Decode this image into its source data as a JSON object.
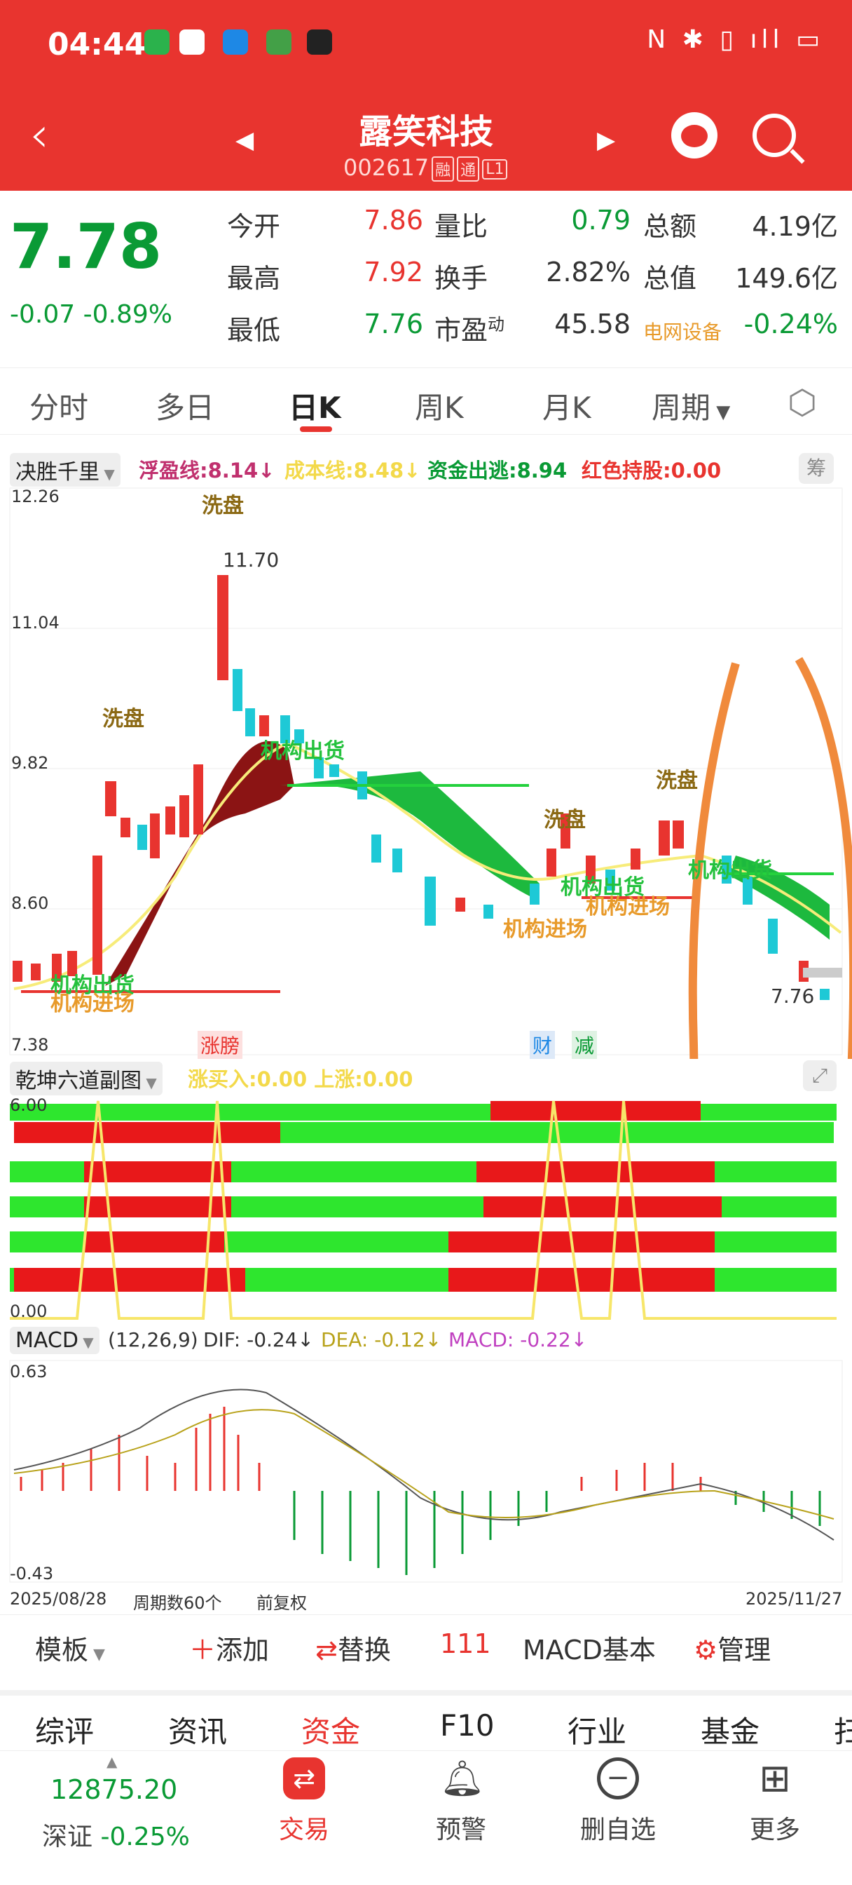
{
  "status": {
    "time": "04:44",
    "right_icons": "N ✱ ▯ ıll ▭"
  },
  "header": {
    "stock_name": "露笑科技",
    "stock_code": "002617",
    "tags": [
      "融",
      "通",
      "L1"
    ]
  },
  "quote": {
    "price": "7.78",
    "change": "-0.07",
    "change_pct": "-0.89%",
    "rows": [
      {
        "l1": "今开",
        "v1": "7.86",
        "l2": "量比",
        "v2": "0.79",
        "l3": "总额",
        "v3": "4.19亿"
      },
      {
        "l1": "最高",
        "v1": "7.92",
        "l2": "换手",
        "v2": "2.82%",
        "l3": "总值",
        "v3": "149.6亿"
      },
      {
        "l1": "最低",
        "v1": "7.76",
        "l2": "市盈",
        "l2sup": "动",
        "v2": "45.58",
        "l3": "电网设备",
        "v3": "-0.24%"
      }
    ]
  },
  "tabs": [
    "分时",
    "多日",
    "日K",
    "周K",
    "月K",
    "周期"
  ],
  "kline": {
    "indicator": "决胜千里",
    "legend": [
      {
        "t": "浮盈线:8.14↓",
        "c": "#c0306e"
      },
      {
        "t": "成本线:8.48↓",
        "c": "#f3d94a"
      },
      {
        "t": "资金出逃:8.94",
        "c": "#0a9a35"
      },
      {
        "t": "红色持股:0.00",
        "c": "#e8342f"
      }
    ],
    "chip": "筹",
    "y_labels": [
      "12.26",
      "11.04",
      "9.82",
      "8.60",
      "7.38"
    ],
    "high_label": "11.70",
    "low_label": "7.76",
    "wash_labels": [
      "洗盘",
      "洗盘",
      "洗盘",
      "洗盘"
    ],
    "inst_out": "机构出货",
    "inst_in": "机构进场",
    "events": {
      "limit": "涨膀",
      "fin": "财",
      "reduce": "减"
    }
  },
  "sub1": {
    "indicator": "乾坤六道副图",
    "legend": "涨买入:0.00 上涨:0.00",
    "y_top": "6.00",
    "y_bottom": "0.00"
  },
  "macd": {
    "indicator": "MACD",
    "params": "(12,26,9)",
    "dif": "DIF: -0.24↓",
    "dea": "DEA: -0.12↓",
    "macd": "MACD: -0.22↓",
    "y_top": "0.63",
    "y_bottom": "-0.43",
    "date_start": "2025/08/28",
    "period_count": "周期数60个",
    "adjust": "前复权",
    "date_end": "2025/11/27"
  },
  "toolbar": {
    "template": "模板",
    "add": "添加",
    "replace": "替换",
    "num": "111",
    "macd_basic": "MACD基本",
    "manage": "管理"
  },
  "subtabs": [
    "综评",
    "资讯",
    "资金",
    "F10",
    "行业",
    "基金",
    "扫"
  ],
  "bottom": {
    "index_value": "12875.20",
    "index_name": "深证",
    "index_chg": "-0.25%",
    "items": [
      "交易",
      "预警",
      "删自选",
      "更多"
    ]
  }
}
